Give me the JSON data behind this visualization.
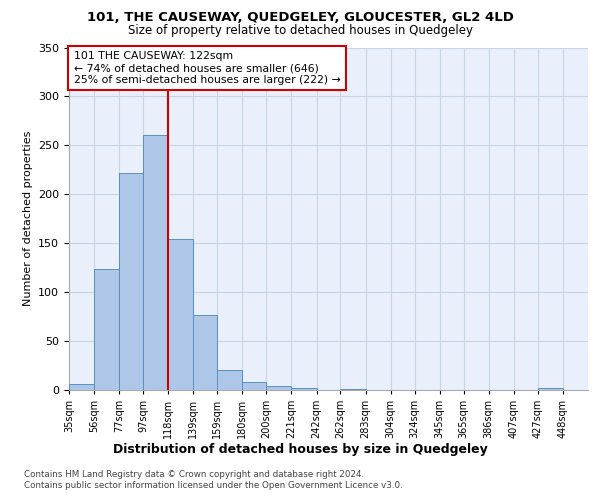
{
  "title1": "101, THE CAUSEWAY, QUEDGELEY, GLOUCESTER, GL2 4LD",
  "title2": "Size of property relative to detached houses in Quedgeley",
  "xlabel": "Distribution of detached houses by size in Quedgeley",
  "ylabel": "Number of detached properties",
  "bin_labels": [
    "35sqm",
    "56sqm",
    "77sqm",
    "97sqm",
    "118sqm",
    "139sqm",
    "159sqm",
    "180sqm",
    "200sqm",
    "221sqm",
    "242sqm",
    "262sqm",
    "283sqm",
    "304sqm",
    "324sqm",
    "345sqm",
    "365sqm",
    "386sqm",
    "407sqm",
    "427sqm",
    "448sqm"
  ],
  "bin_edges": [
    35,
    56,
    77,
    97,
    118,
    139,
    159,
    180,
    200,
    221,
    242,
    262,
    283,
    304,
    324,
    345,
    365,
    386,
    407,
    427,
    448,
    469
  ],
  "bar_values": [
    6,
    124,
    222,
    261,
    154,
    77,
    20,
    8,
    4,
    2,
    0,
    1,
    0,
    0,
    0,
    0,
    0,
    0,
    0,
    2,
    0
  ],
  "bar_color": "#aec6e8",
  "bar_edge_color": "#5a8fc0",
  "vline_x": 118,
  "vline_color": "#cc0000",
  "annotation_text": "101 THE CAUSEWAY: 122sqm\n← 74% of detached houses are smaller (646)\n25% of semi-detached houses are larger (222) →",
  "annotation_box_color": "white",
  "annotation_box_edge": "#cc0000",
  "ylim": [
    0,
    350
  ],
  "yticks": [
    0,
    50,
    100,
    150,
    200,
    250,
    300,
    350
  ],
  "plot_bg_color": "#eaf0fb",
  "grid_color": "#c8d4e8",
  "footer1": "Contains HM Land Registry data © Crown copyright and database right 2024.",
  "footer2": "Contains public sector information licensed under the Open Government Licence v3.0."
}
